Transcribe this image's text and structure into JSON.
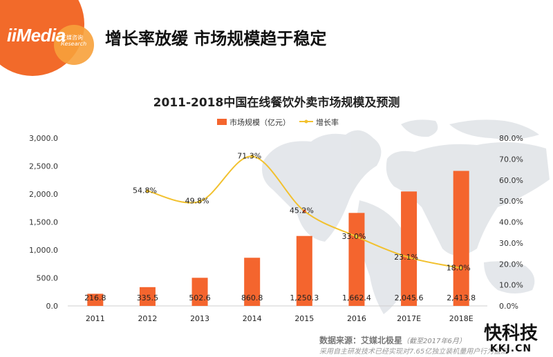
{
  "brand": {
    "logo_text": "iiMedia",
    "logo_cn": "艾媒咨询",
    "logo_en": "Research",
    "orange": "#f26a2a",
    "light_orange": "#f7a13b"
  },
  "header": {
    "title": "增长率放缓 市场规模趋于稳定"
  },
  "footer": {
    "source": "数据来源：艾媒北极星",
    "source_note": "（截至2017年6月）",
    "method": "采用自主研发技术已经实现对7.65亿独立装机量用户行为监测"
  },
  "watermark": {
    "main": "快科技",
    "sub": "KKJ.CN"
  },
  "chart_data": {
    "type": "bar",
    "title": "2011-2018中国在线餐饮外卖市场规模及预测",
    "categories": [
      "2011",
      "2012",
      "2013",
      "2014",
      "2015",
      "2016",
      "2017E",
      "2018E"
    ],
    "series": [
      {
        "name": "市场规模（亿元）",
        "type": "bar",
        "axis": "left",
        "color": "#f4652e",
        "values": [
          216.8,
          335.5,
          502.6,
          860.8,
          1250.3,
          1662.4,
          2045.6,
          2413.8
        ],
        "labels": [
          "216.8",
          "335.5",
          "502.6",
          "860.8",
          "1,250.3",
          "1,662.4",
          "2,045.6",
          "2,413.8"
        ]
      },
      {
        "name": "增长率",
        "type": "line",
        "axis": "right",
        "color": "#f2c12e",
        "values": [
          null,
          54.8,
          49.8,
          71.3,
          45.2,
          33.0,
          23.1,
          18.0
        ],
        "labels": [
          "",
          "54.8%",
          "49.8%",
          "71.3%",
          "45.2%",
          "33.0%",
          "23.1%",
          "18.0%"
        ]
      }
    ],
    "left_axis": {
      "ylim": [
        0,
        3000
      ],
      "ticks": [
        "0.0",
        "500.0",
        "1,000.0",
        "1,500.0",
        "2,000.0",
        "2,500.0",
        "3,000.0"
      ]
    },
    "right_axis": {
      "ylim": [
        0,
        80
      ],
      "ticks": [
        "0.0%",
        "10.0%",
        "20.0%",
        "30.0%",
        "40.0%",
        "50.0%",
        "60.0%",
        "70.0%",
        "80.0%"
      ]
    },
    "legend_placement": "top-center",
    "grid": false
  }
}
